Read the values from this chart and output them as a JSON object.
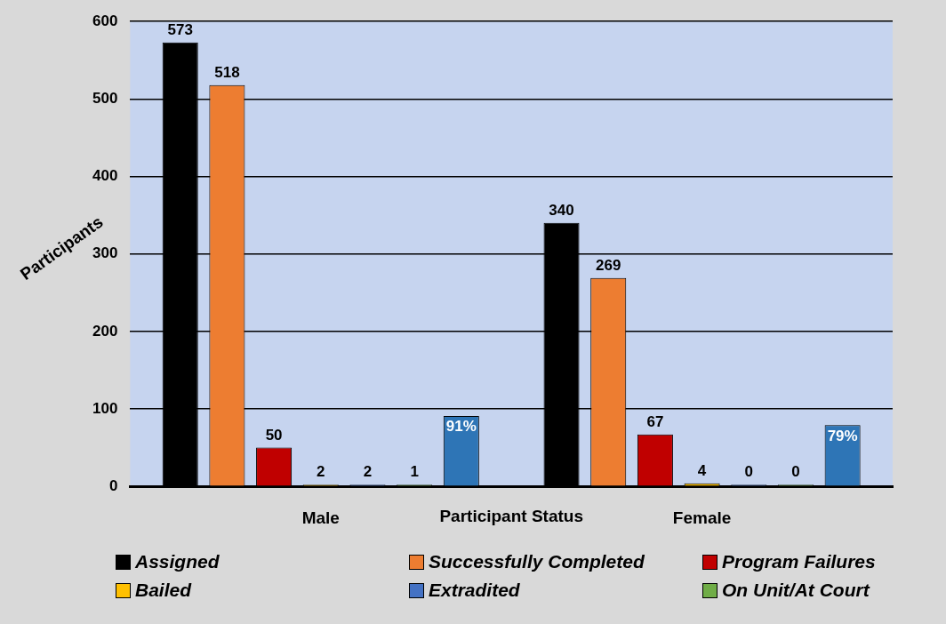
{
  "chart_data": {
    "type": "bar",
    "xlabel": "Participant Status",
    "ylabel": "Participants",
    "categories": [
      "Male",
      "Female"
    ],
    "series": [
      {
        "name": "Assigned",
        "color": "#000000",
        "values": [
          573,
          340
        ]
      },
      {
        "name": "Successfully Completed",
        "color": "#ed7d31",
        "values": [
          518,
          269
        ]
      },
      {
        "name": "Program Failures",
        "color": "#c00000",
        "values": [
          50,
          67
        ]
      },
      {
        "name": "Bailed",
        "color": "#ffc000",
        "values": [
          2,
          4
        ]
      },
      {
        "name": "Extradited",
        "color": "#4472c4",
        "values": [
          2,
          0
        ]
      },
      {
        "name": "On Unit/At Court",
        "color": "#70ad47",
        "values": [
          1,
          0
        ]
      },
      {
        "color": "#2e75b6",
        "values": [
          91,
          79
        ],
        "value_labels": [
          "91%",
          "79%"
        ]
      }
    ],
    "ylim": [
      0,
      600
    ],
    "yticks": [
      0,
      100,
      200,
      300,
      400,
      500,
      600
    ],
    "grid": "y",
    "legend": "bottom",
    "data_labels": true
  }
}
